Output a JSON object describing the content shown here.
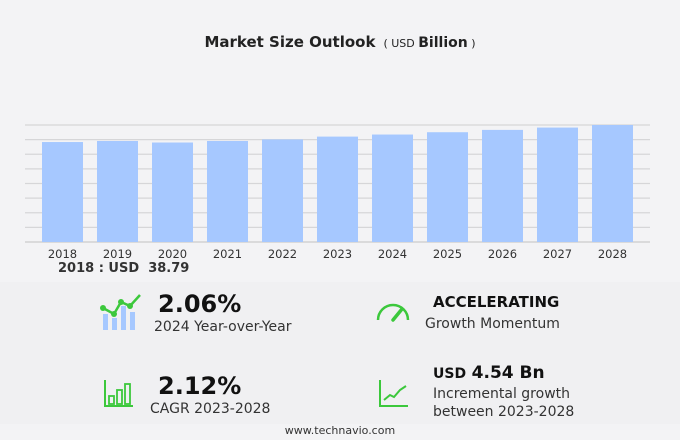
{
  "title": "Market Size Outlook",
  "unit_prefix": "USD",
  "unit": "Billion",
  "chart_data": {
    "type": "bar",
    "categories": [
      "2018",
      "2019",
      "2020",
      "2021",
      "2022",
      "2023",
      "2024",
      "2025",
      "2026",
      "2027",
      "2028"
    ],
    "values": [
      38.79,
      39.2,
      38.6,
      39.2,
      39.8,
      40.9,
      41.7,
      42.6,
      43.5,
      44.4,
      45.4
    ],
    "ylim": [
      0,
      45.4
    ],
    "grid": true,
    "bar_color": "#a6c8ff",
    "first_value_label": "2018 : USD  38.79"
  },
  "stats": {
    "yoy_value": "2.06%",
    "yoy_label": "2024 Year-over-Year",
    "momentum_value": "ACCELERATING",
    "momentum_label": "Growth Momentum",
    "cagr_value": "2.12%",
    "cagr_label": "CAGR 2023-2028",
    "incr_prefix": "USD",
    "incr_value": "4.54 Bn",
    "incr_label1": "Incremental growth",
    "incr_label2": "between 2023-2028"
  },
  "accent_color": "#3cc83c",
  "footer": "www.technavio.com"
}
